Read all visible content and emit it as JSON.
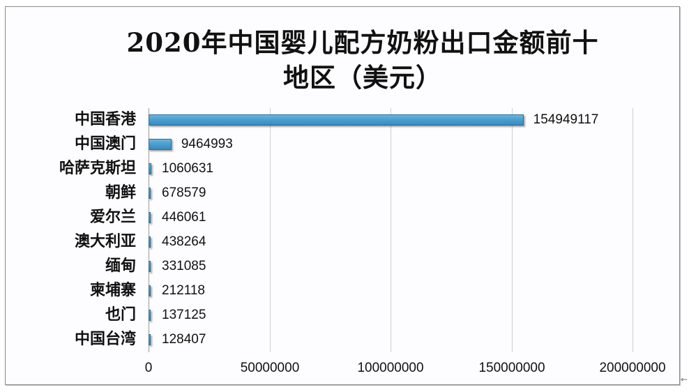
{
  "chart_data": {
    "type": "bar",
    "orientation": "horizontal",
    "title": "2020年中国婴儿配方奶粉出口金额前十地区（美元）",
    "title_lines": [
      "2020年中国婴儿配方奶粉出口金额前十",
      "地区（美元）"
    ],
    "xlabel": "",
    "ylabel": "",
    "categories": [
      "中国香港",
      "中国澳门",
      "哈萨克斯坦",
      "朝鲜",
      "爱尔兰",
      "澳大利亚",
      "缅甸",
      "柬埔寨",
      "也门",
      "中国台湾"
    ],
    "values": [
      154949117,
      9464993,
      1060631,
      678579,
      446061,
      438264,
      331085,
      212118,
      137125,
      128407
    ],
    "value_labels": [
      "154949117",
      "9464993",
      "1060631",
      "678579",
      "446061",
      "438264",
      "331085",
      "212118",
      "137125",
      "128407"
    ],
    "xlim": [
      0,
      200000000
    ],
    "x_ticks": [
      0,
      50000000,
      100000000,
      150000000,
      200000000
    ],
    "x_tick_labels": [
      "0",
      "50000000",
      "100000000",
      "150000000",
      "200000000"
    ],
    "grid": true,
    "legend": "none",
    "bar_color": "#4a9fd0"
  }
}
